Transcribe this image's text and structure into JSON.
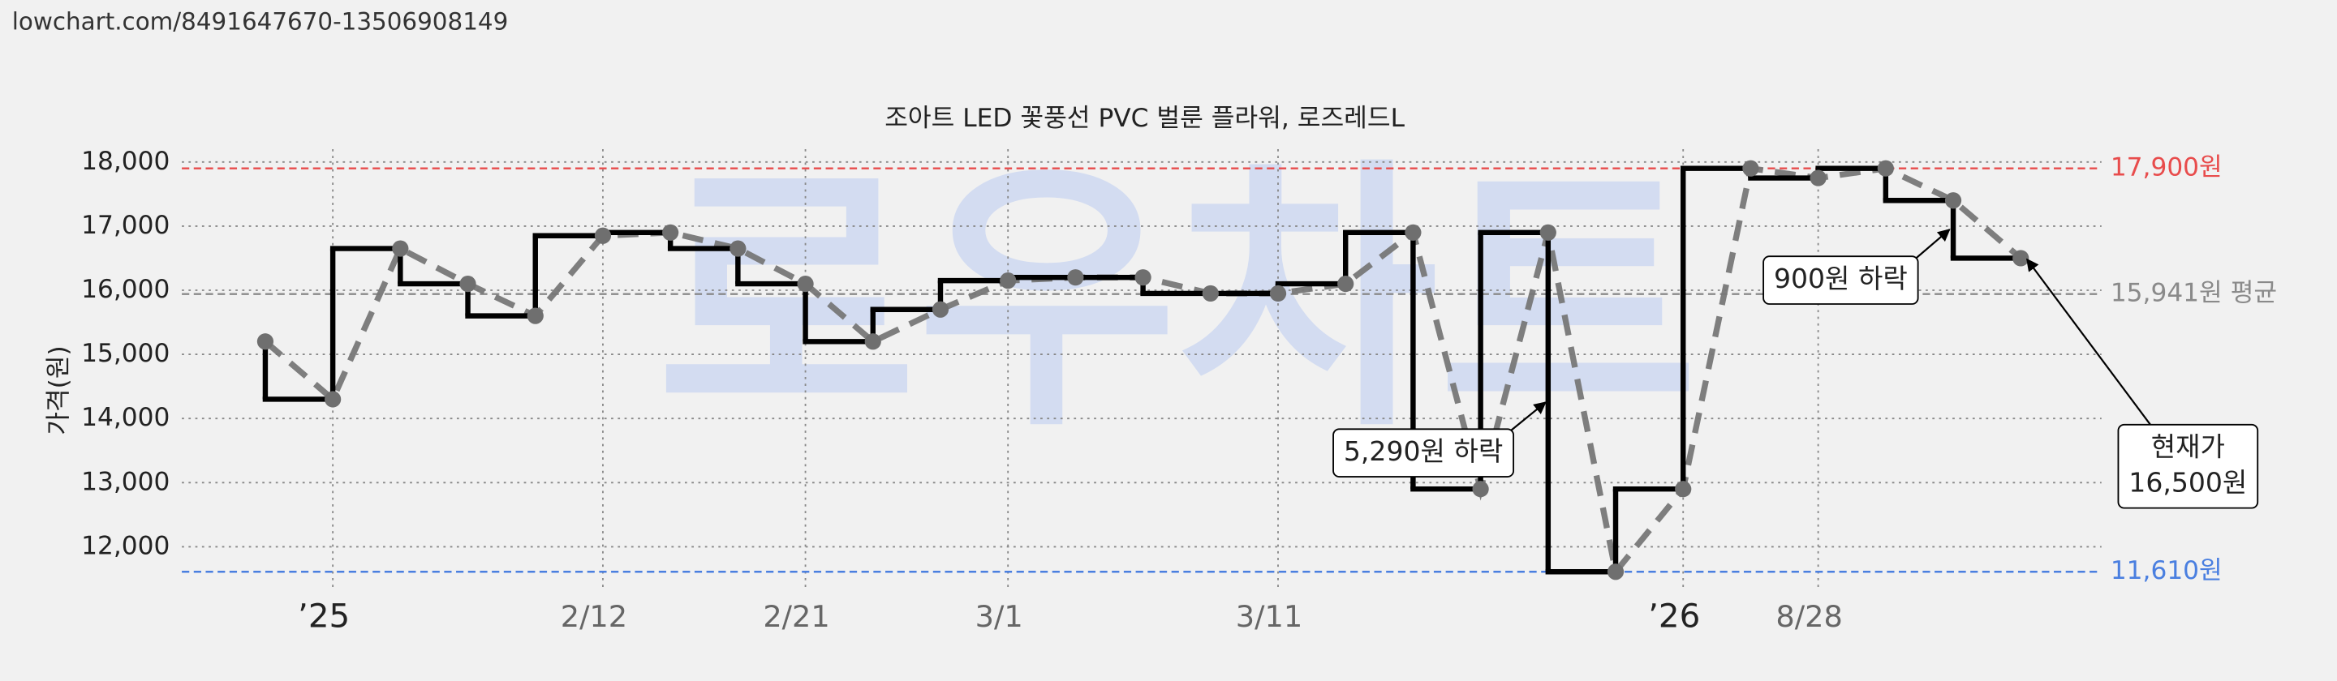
{
  "source": "lowchart.com/8491647670-13506908149",
  "chart_data": {
    "type": "step",
    "title": "조아트 LED 꽃풍선 PVC 벌룬 플라워, 로즈레드L",
    "ylabel": "가격(원)",
    "watermark": "로우차트",
    "categories": [
      null,
      "’25",
      null,
      null,
      null,
      "2/12",
      null,
      null,
      "2/21",
      null,
      null,
      "3/1",
      null,
      null,
      null,
      "3/11",
      null,
      null,
      null,
      null,
      null,
      "’26",
      null,
      "8/28",
      null,
      null,
      null
    ],
    "values": [
      15200,
      14300,
      16650,
      16100,
      15600,
      16850,
      16900,
      16650,
      16100,
      15200,
      15700,
      16150,
      16200,
      16200,
      15950,
      15950,
      16100,
      16900,
      12900,
      16900,
      11610,
      12900,
      17900,
      17750,
      17900,
      17400,
      16500
    ],
    "step_color": "#000000",
    "line_color": "#777777",
    "ylim": [
      11350,
      18200
    ],
    "yticks": [
      {
        "value": 12000,
        "label": "12,000"
      },
      {
        "value": 13000,
        "label": "13,000"
      },
      {
        "value": 14000,
        "label": "14,000"
      },
      {
        "value": 15000,
        "label": "15,000"
      },
      {
        "value": 16000,
        "label": "16,000"
      },
      {
        "value": 17000,
        "label": "17,000"
      },
      {
        "value": 18000,
        "label": "18,000"
      }
    ],
    "grid": true,
    "reference_lines": [
      {
        "value": 17900,
        "label": "17,900원",
        "color": "#e84c4c"
      },
      {
        "value": 15941,
        "label": "15,941원 평균",
        "color": "#8a8a8a"
      },
      {
        "value": 11610,
        "label": "11,610원",
        "color": "#4a7fe0"
      }
    ],
    "annotations": [
      {
        "lines": [
          "5,290원 하락"
        ]
      },
      {
        "lines": [
          "900원 하락"
        ]
      },
      {
        "lines": [
          "현재가",
          "16,500원"
        ]
      }
    ]
  }
}
